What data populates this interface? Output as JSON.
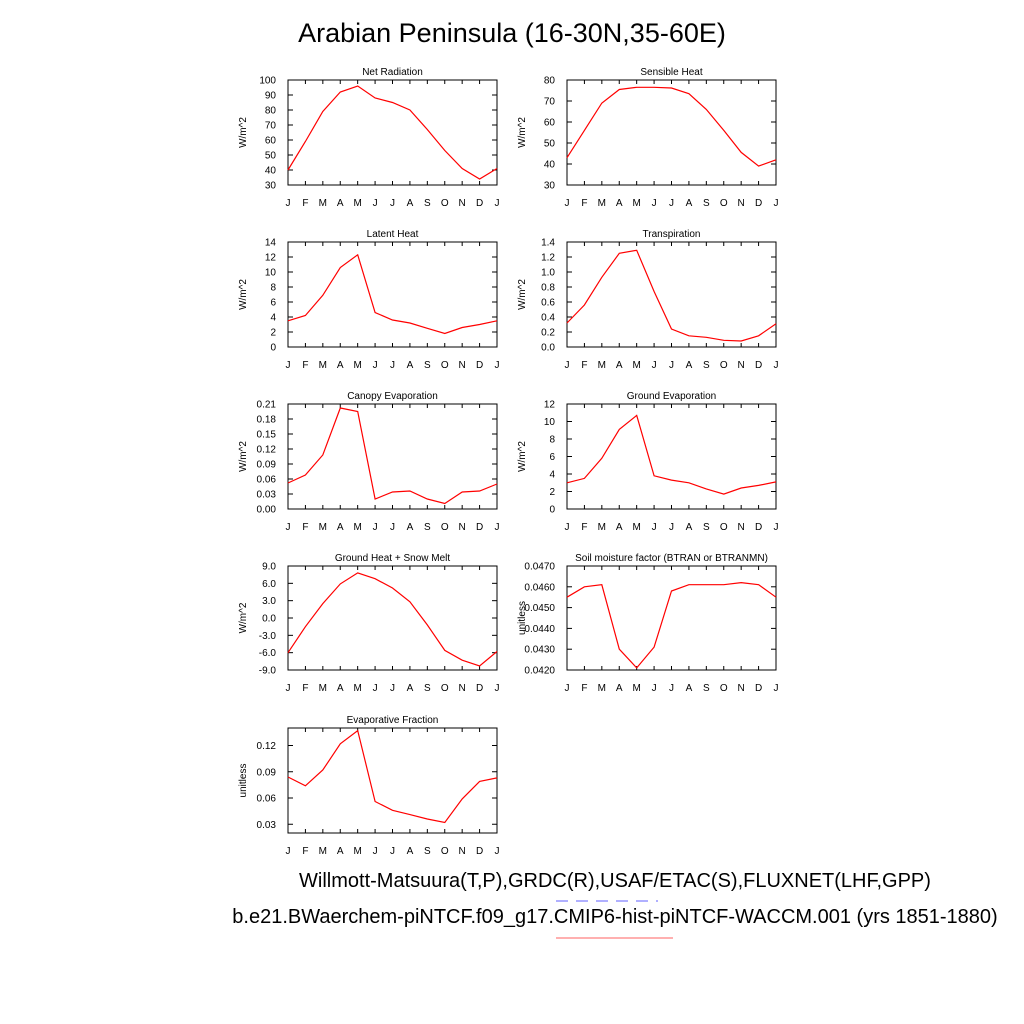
{
  "page": {
    "title": "Arabian Peninsula (16-30N,35-60E)",
    "footer_obs": "Willmott-Matsuura(T,P),GRDC(R),USAF/ETAC(S),FLUXNET(LHF,GPP)",
    "footer_case": "b.e21.BWaerchem-piNTCF.f09_g17.CMIP6-hist-piNTCF-WACCM.001 (yrs 1851-1880)"
  },
  "colors": {
    "line": "#ff0000",
    "obs_marker": "#8080ff",
    "case_marker": "#ff8080"
  },
  "chart_data": [
    {
      "type": "line",
      "title": "Net Radiation",
      "ylabel": "W/m^2",
      "categories": [
        "J",
        "F",
        "M",
        "A",
        "M",
        "J",
        "J",
        "A",
        "S",
        "O",
        "N",
        "D",
        "J"
      ],
      "values": [
        40,
        59,
        79,
        92,
        96,
        88,
        85,
        80,
        67,
        53,
        41,
        34,
        41
      ],
      "ylim": [
        30,
        100
      ],
      "yticks": [
        "30",
        "40",
        "50",
        "60",
        "70",
        "80",
        "90",
        "100"
      ]
    },
    {
      "type": "line",
      "title": "Sensible Heat",
      "ylabel": "W/m^2",
      "categories": [
        "J",
        "F",
        "M",
        "A",
        "M",
        "J",
        "J",
        "A",
        "S",
        "O",
        "N",
        "D",
        "J"
      ],
      "values": [
        43,
        56,
        69,
        75.5,
        76.5,
        76.5,
        76.2,
        73.5,
        66,
        56,
        45.5,
        39,
        42
      ],
      "ylim": [
        30,
        80
      ],
      "yticks": [
        "30",
        "40",
        "50",
        "60",
        "70",
        "80"
      ]
    },
    {
      "type": "line",
      "title": "Latent Heat",
      "ylabel": "W/m^2",
      "categories": [
        "J",
        "F",
        "M",
        "A",
        "M",
        "J",
        "J",
        "A",
        "S",
        "O",
        "N",
        "D",
        "J"
      ],
      "values": [
        3.5,
        4.2,
        6.9,
        10.6,
        12.3,
        4.6,
        3.6,
        3.2,
        2.5,
        1.8,
        2.6,
        3.0,
        3.5
      ],
      "ylim": [
        0,
        14
      ],
      "yticks": [
        "0",
        "2",
        "4",
        "6",
        "8",
        "10",
        "12",
        "14"
      ]
    },
    {
      "type": "line",
      "title": "Transpiration",
      "ylabel": "W/m^2",
      "categories": [
        "J",
        "F",
        "M",
        "A",
        "M",
        "J",
        "J",
        "A",
        "S",
        "O",
        "N",
        "D",
        "J"
      ],
      "values": [
        0.32,
        0.56,
        0.93,
        1.25,
        1.29,
        0.74,
        0.24,
        0.15,
        0.13,
        0.09,
        0.08,
        0.15,
        0.31
      ],
      "ylim": [
        0,
        1.4
      ],
      "yticks": [
        "0.0",
        "0.2",
        "0.4",
        "0.6",
        "0.8",
        "1.0",
        "1.2",
        "1.4"
      ]
    },
    {
      "type": "line",
      "title": "Canopy Evaporation",
      "ylabel": "W/m^2",
      "categories": [
        "J",
        "F",
        "M",
        "A",
        "M",
        "J",
        "J",
        "A",
        "S",
        "O",
        "N",
        "D",
        "J"
      ],
      "values": [
        0.052,
        0.068,
        0.108,
        0.202,
        0.195,
        0.02,
        0.034,
        0.036,
        0.02,
        0.011,
        0.034,
        0.036,
        0.05
      ],
      "ylim": [
        0,
        0.21
      ],
      "yticks": [
        "0.00",
        "0.03",
        "0.06",
        "0.09",
        "0.12",
        "0.15",
        "0.18",
        "0.21"
      ]
    },
    {
      "type": "line",
      "title": "Ground Evaporation",
      "ylabel": "W/m^2",
      "categories": [
        "J",
        "F",
        "M",
        "A",
        "M",
        "J",
        "J",
        "A",
        "S",
        "O",
        "N",
        "D",
        "J"
      ],
      "values": [
        3.0,
        3.5,
        5.8,
        9.1,
        10.7,
        3.8,
        3.3,
        3.0,
        2.3,
        1.7,
        2.4,
        2.7,
        3.1
      ],
      "ylim": [
        0,
        12
      ],
      "yticks": [
        "0",
        "2",
        "4",
        "6",
        "8",
        "10",
        "12"
      ]
    },
    {
      "type": "line",
      "title": "Ground Heat + Snow Melt",
      "ylabel": "W/m^2",
      "categories": [
        "J",
        "F",
        "M",
        "A",
        "M",
        "J",
        "J",
        "A",
        "S",
        "O",
        "N",
        "D",
        "J"
      ],
      "values": [
        -6.0,
        -1.5,
        2.5,
        5.9,
        7.8,
        6.8,
        5.2,
        2.8,
        -1.2,
        -5.6,
        -7.3,
        -8.3,
        -5.8
      ],
      "ylim": [
        -9,
        9
      ],
      "yticks": [
        "-9.0",
        "-6.0",
        "-3.0",
        "0.0",
        "3.0",
        "6.0",
        "9.0"
      ]
    },
    {
      "type": "line",
      "title": "Soil moisture factor (BTRAN or BTRANMN)",
      "ylabel": "unitless",
      "categories": [
        "J",
        "F",
        "M",
        "A",
        "M",
        "J",
        "J",
        "A",
        "S",
        "O",
        "N",
        "D",
        "J"
      ],
      "values": [
        0.0455,
        0.046,
        0.0461,
        0.043,
        0.0421,
        0.0431,
        0.0458,
        0.0461,
        0.0461,
        0.0461,
        0.0462,
        0.0461,
        0.0455
      ],
      "ylim": [
        0.042,
        0.047
      ],
      "yticks": [
        "0.0420",
        "0.0430",
        "0.0440",
        "0.0450",
        "0.0460",
        "0.0470"
      ]
    },
    {
      "type": "line",
      "title": "Evaporative Fraction",
      "ylabel": "unitless",
      "categories": [
        "J",
        "F",
        "M",
        "A",
        "M",
        "J",
        "J",
        "A",
        "S",
        "O",
        "N",
        "D",
        "J"
      ],
      "values": [
        0.084,
        0.074,
        0.092,
        0.122,
        0.137,
        0.056,
        0.046,
        0.041,
        0.036,
        0.032,
        0.059,
        0.079,
        0.083
      ],
      "ylim": [
        0.02,
        0.14
      ],
      "yticks": [
        "0.03",
        "0.06",
        "0.09",
        "0.12"
      ],
      "ytick_values": [
        0.03,
        0.06,
        0.09,
        0.12
      ]
    }
  ]
}
